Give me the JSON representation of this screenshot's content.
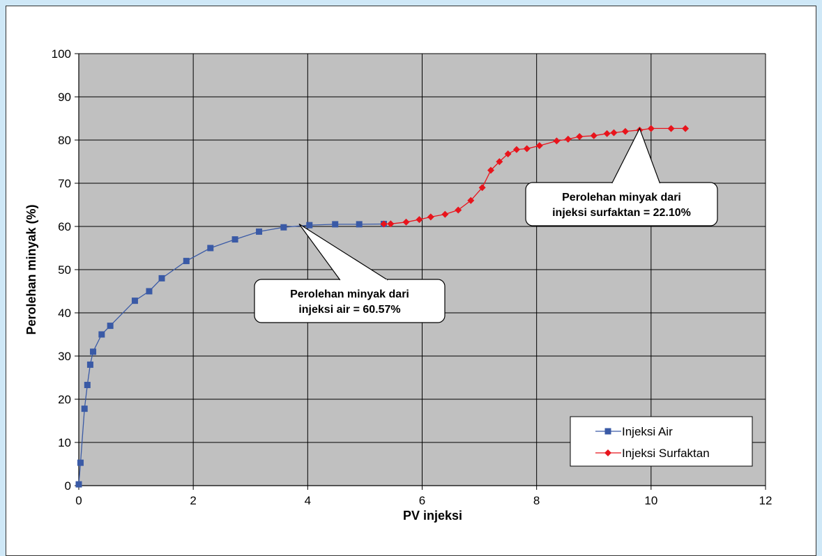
{
  "colors": {
    "page_background": "#cfe8f7",
    "plot_background": "#c0c0c0",
    "series_air": "#3a5aa6",
    "series_surfaktan": "#e8141c"
  },
  "chart_data": {
    "type": "line",
    "title": "",
    "xlabel": "PV  injeksi",
    "ylabel": "Perolehan minyak (%)",
    "xlim": [
      0,
      12
    ],
    "ylim": [
      0,
      100
    ],
    "xticks": [
      0,
      2,
      4,
      6,
      8,
      10,
      12
    ],
    "yticks": [
      0,
      10,
      20,
      30,
      40,
      50,
      60,
      70,
      80,
      90,
      100
    ],
    "grid": true,
    "legend_position": "bottom-right",
    "series": [
      {
        "name": "Injeksi Air",
        "marker": "square",
        "x": [
          0.0,
          0.03,
          0.1,
          0.15,
          0.2,
          0.25,
          0.4,
          0.55,
          0.98,
          1.23,
          1.45,
          1.88,
          2.3,
          2.73,
          3.15,
          3.58,
          4.03,
          4.48,
          4.9,
          5.33
        ],
        "y": [
          0.3,
          5.3,
          17.8,
          23.3,
          28.0,
          31.0,
          35.0,
          37.0,
          42.8,
          45.0,
          48.0,
          52.0,
          55.0,
          57.0,
          58.8,
          59.8,
          60.3,
          60.5,
          60.5,
          60.57
        ]
      },
      {
        "name": "Injeksi Surfaktan",
        "marker": "diamond",
        "x": [
          5.33,
          5.45,
          5.72,
          5.95,
          6.15,
          6.4,
          6.63,
          6.85,
          7.05,
          7.2,
          7.35,
          7.5,
          7.65,
          7.83,
          8.05,
          8.35,
          8.55,
          8.75,
          9.0,
          9.23,
          9.35,
          9.55,
          9.8,
          10.0,
          10.35,
          10.6
        ],
        "y": [
          60.57,
          60.6,
          61.0,
          61.6,
          62.2,
          62.8,
          63.8,
          66.0,
          69.0,
          73.0,
          75.0,
          76.8,
          77.8,
          78.0,
          78.7,
          79.8,
          80.2,
          80.8,
          81.0,
          81.5,
          81.7,
          82.0,
          82.3,
          82.67,
          82.67,
          82.67
        ]
      }
    ],
    "annotations": [
      {
        "line1": "Perolehan minyak dari",
        "line2": "injeksi air = 60.57%",
        "point_x": 3.85,
        "point_y": 60.57
      },
      {
        "line1": "Perolehan minyak dari",
        "line2": "injeksi surfaktan = 22.10%",
        "point_x": 9.8,
        "point_y": 82.67
      }
    ]
  }
}
